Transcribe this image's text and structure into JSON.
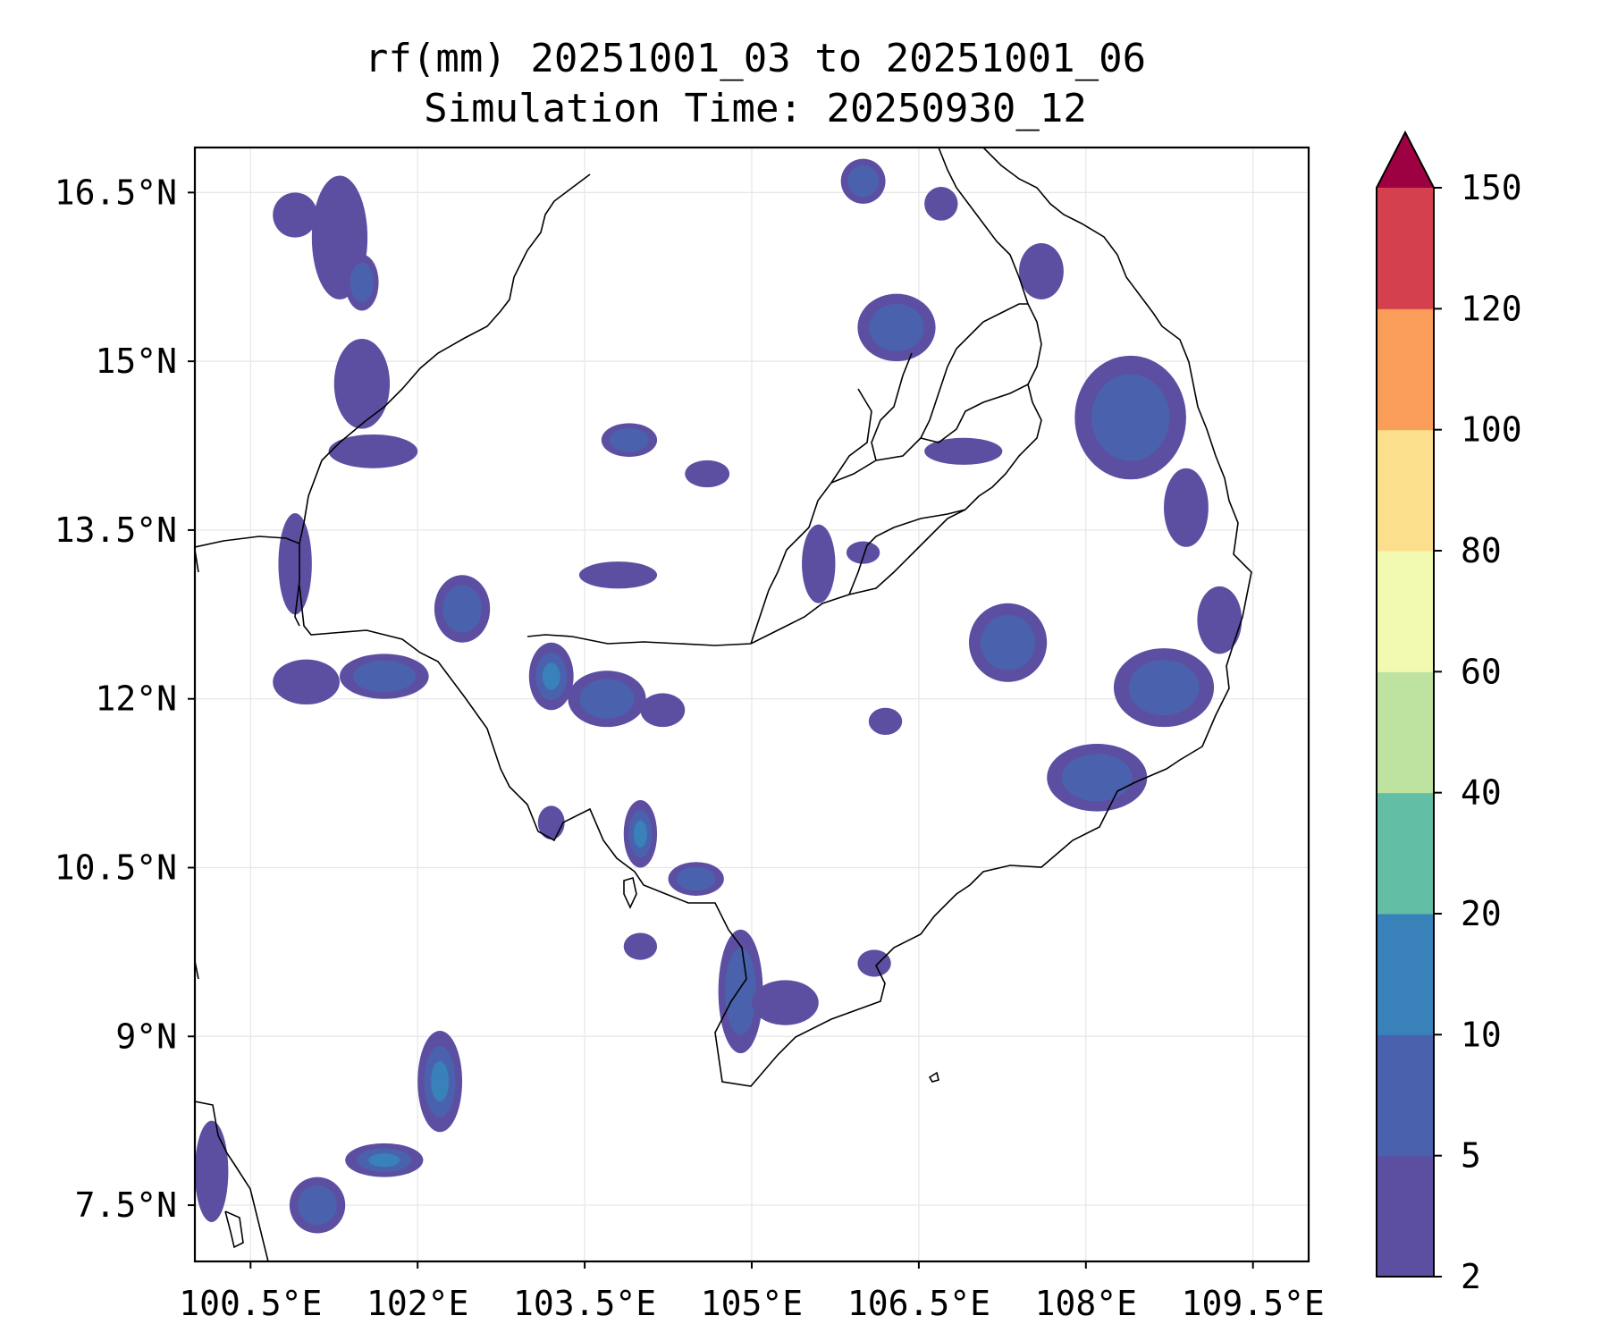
{
  "title": {
    "line1": "rf(mm) 20251001_03 to 20251001_06",
    "line2": "Simulation Time: 20250930_12"
  },
  "map": {
    "projection": "PlateCarree",
    "lon_range": [
      100.0,
      110.0
    ],
    "lat_range": [
      7.0,
      16.9
    ],
    "x_ticks": [
      {
        "lon": 100.5,
        "label": "100.5°E"
      },
      {
        "lon": 102.0,
        "label": "102°E"
      },
      {
        "lon": 103.5,
        "label": "103.5°E"
      },
      {
        "lon": 105.0,
        "label": "105°E"
      },
      {
        "lon": 106.5,
        "label": "106.5°E"
      },
      {
        "lon": 108.0,
        "label": "108°E"
      },
      {
        "lon": 109.5,
        "label": "109.5°E"
      }
    ],
    "y_ticks": [
      {
        "lat": 16.5,
        "label": "16.5°N"
      },
      {
        "lat": 15.0,
        "label": "15°N"
      },
      {
        "lat": 13.5,
        "label": "13.5°N"
      },
      {
        "lat": 12.0,
        "label": "12°N"
      },
      {
        "lat": 10.5,
        "label": "10.5°N"
      },
      {
        "lat": 9.0,
        "label": "9°N"
      },
      {
        "lat": 7.5,
        "label": "7.5°N"
      }
    ]
  },
  "colorbar": {
    "levels": [
      "2",
      "5",
      "10",
      "20",
      "40",
      "60",
      "80",
      "100",
      "120",
      "150"
    ],
    "colors": [
      "#5c4fa2",
      "#4a62ad",
      "#3881b9",
      "#63bea6",
      "#bee3a1",
      "#f2f9b0",
      "#fbdf8c",
      "#f99d59",
      "#d5404e"
    ],
    "extend_color": "#9e0142"
  },
  "chart_data": {
    "type": "heatmap",
    "variable": "rf(mm)",
    "valid_period": "20251001_03 to 20251001_06",
    "simulation_time": "20250930_12",
    "levels": [
      2,
      5,
      10,
      20,
      40,
      60,
      80,
      100,
      120,
      150
    ],
    "extend": "max",
    "precip_cells": [
      {
        "lon": 101.3,
        "lat": 16.1,
        "rlon": 0.25,
        "rlat": 0.55,
        "level": 0
      },
      {
        "lon": 101.5,
        "lat": 15.7,
        "rlon": 0.15,
        "rlat": 0.25,
        "level": 1
      },
      {
        "lon": 101.5,
        "lat": 14.8,
        "rlon": 0.25,
        "rlat": 0.4,
        "level": 0
      },
      {
        "lon": 101.6,
        "lat": 14.2,
        "rlon": 0.4,
        "rlat": 0.15,
        "level": 0
      },
      {
        "lon": 100.9,
        "lat": 16.3,
        "rlon": 0.2,
        "rlat": 0.2,
        "level": 0
      },
      {
        "lon": 100.9,
        "lat": 13.2,
        "rlon": 0.15,
        "rlat": 0.45,
        "level": 0
      },
      {
        "lon": 101.7,
        "lat": 12.2,
        "rlon": 0.4,
        "rlat": 0.2,
        "level": 1
      },
      {
        "lon": 101.0,
        "lat": 12.15,
        "rlon": 0.3,
        "rlat": 0.2,
        "level": 0
      },
      {
        "lon": 102.2,
        "lat": 8.6,
        "rlon": 0.2,
        "rlat": 0.45,
        "level": 2
      },
      {
        "lon": 101.7,
        "lat": 7.9,
        "rlon": 0.35,
        "rlat": 0.15,
        "level": 2
      },
      {
        "lon": 101.1,
        "lat": 7.5,
        "rlon": 0.25,
        "rlat": 0.25,
        "level": 1
      },
      {
        "lon": 100.15,
        "lat": 7.8,
        "rlon": 0.15,
        "rlat": 0.45,
        "level": 0
      },
      {
        "lon": 102.4,
        "lat": 12.8,
        "rlon": 0.25,
        "rlat": 0.3,
        "level": 1
      },
      {
        "lon": 103.2,
        "lat": 12.2,
        "rlon": 0.2,
        "rlat": 0.3,
        "level": 2
      },
      {
        "lon": 103.7,
        "lat": 12.0,
        "rlon": 0.35,
        "rlat": 0.25,
        "level": 1
      },
      {
        "lon": 104.2,
        "lat": 11.9,
        "rlon": 0.2,
        "rlat": 0.15,
        "level": 0
      },
      {
        "lon": 103.8,
        "lat": 13.1,
        "rlon": 0.35,
        "rlat": 0.12,
        "level": 0
      },
      {
        "lon": 104.6,
        "lat": 14.0,
        "rlon": 0.2,
        "rlat": 0.12,
        "level": 0
      },
      {
        "lon": 103.9,
        "lat": 14.3,
        "rlon": 0.25,
        "rlat": 0.15,
        "level": 1
      },
      {
        "lon": 104.0,
        "lat": 10.8,
        "rlon": 0.15,
        "rlat": 0.3,
        "level": 2
      },
      {
        "lon": 104.5,
        "lat": 10.4,
        "rlon": 0.25,
        "rlat": 0.15,
        "level": 1
      },
      {
        "lon": 103.2,
        "lat": 10.9,
        "rlon": 0.12,
        "rlat": 0.15,
        "level": 0
      },
      {
        "lon": 104.9,
        "lat": 9.4,
        "rlon": 0.2,
        "rlat": 0.55,
        "level": 1
      },
      {
        "lon": 105.3,
        "lat": 9.3,
        "rlon": 0.3,
        "rlat": 0.2,
        "level": 0
      },
      {
        "lon": 105.6,
        "lat": 13.2,
        "rlon": 0.15,
        "rlat": 0.35,
        "level": 0
      },
      {
        "lon": 106.0,
        "lat": 13.3,
        "rlon": 0.15,
        "rlat": 0.1,
        "level": 0
      },
      {
        "lon": 106.2,
        "lat": 11.8,
        "rlon": 0.15,
        "rlat": 0.12,
        "level": 0
      },
      {
        "lon": 106.3,
        "lat": 15.3,
        "rlon": 0.35,
        "rlat": 0.3,
        "level": 1
      },
      {
        "lon": 106.9,
        "lat": 14.2,
        "rlon": 0.35,
        "rlat": 0.12,
        "level": 0
      },
      {
        "lon": 107.3,
        "lat": 12.5,
        "rlon": 0.35,
        "rlat": 0.35,
        "level": 1
      },
      {
        "lon": 108.4,
        "lat": 14.5,
        "rlon": 0.5,
        "rlat": 0.55,
        "level": 1
      },
      {
        "lon": 108.9,
        "lat": 13.7,
        "rlon": 0.2,
        "rlat": 0.35,
        "level": 0
      },
      {
        "lon": 108.7,
        "lat": 12.1,
        "rlon": 0.45,
        "rlat": 0.35,
        "level": 1
      },
      {
        "lon": 108.1,
        "lat": 11.3,
        "rlon": 0.45,
        "rlat": 0.3,
        "level": 1
      },
      {
        "lon": 109.2,
        "lat": 12.7,
        "rlon": 0.2,
        "rlat": 0.3,
        "level": 0
      },
      {
        "lon": 107.6,
        "lat": 15.8,
        "rlon": 0.2,
        "rlat": 0.25,
        "level": 0
      },
      {
        "lon": 106.0,
        "lat": 16.6,
        "rlon": 0.2,
        "rlat": 0.2,
        "level": 1
      },
      {
        "lon": 106.7,
        "lat": 16.4,
        "rlon": 0.15,
        "rlat": 0.15,
        "level": 0
      },
      {
        "lon": 106.1,
        "lat": 9.65,
        "rlon": 0.15,
        "rlat": 0.12,
        "level": 0
      },
      {
        "lon": 104.0,
        "lat": 9.8,
        "rlon": 0.15,
        "rlat": 0.12,
        "level": 0
      }
    ]
  }
}
